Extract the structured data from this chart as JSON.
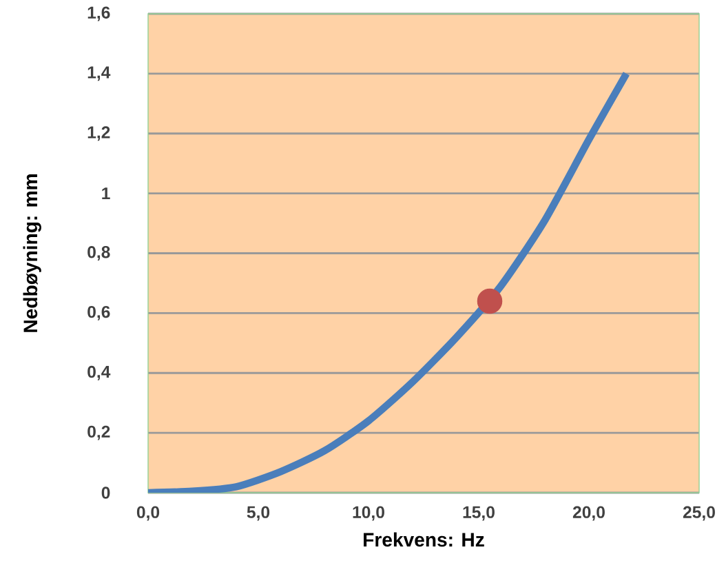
{
  "chart_data": {
    "type": "line",
    "xlabel": "Frekvens: Hz",
    "ylabel": "Nedbøyning: mm",
    "xlim": [
      0,
      25
    ],
    "ylim": [
      0,
      1.6
    ],
    "xticks": [
      {
        "value": 0,
        "label": "0,0"
      },
      {
        "value": 5,
        "label": "5,0"
      },
      {
        "value": 10,
        "label": "10,0"
      },
      {
        "value": 15,
        "label": "15,0"
      },
      {
        "value": 20,
        "label": "20,0"
      },
      {
        "value": 25,
        "label": "25,0"
      }
    ],
    "yticks": [
      0,
      {
        "value": 0.2,
        "label": "0,2"
      },
      {
        "value": 0.4,
        "label": "0,4"
      },
      {
        "value": 0.6,
        "label": "0,6"
      },
      {
        "value": 0.8,
        "label": "0,8"
      },
      1,
      {
        "value": 1.2,
        "label": "1,2"
      },
      {
        "value": 1.4,
        "label": "1,4"
      },
      {
        "value": 1.6,
        "label": "1,6"
      }
    ],
    "grid": "y",
    "marker": "none",
    "line_style": "solid",
    "series": [
      {
        "color": "#4a7ebb",
        "x": [
          0,
          2,
          4,
          6,
          8,
          10,
          12,
          14,
          16,
          18,
          20,
          21.7
        ],
        "values": [
          0,
          0.005,
          0.02,
          0.07,
          0.14,
          0.24,
          0.37,
          0.52,
          0.69,
          0.91,
          1.18,
          1.4
        ]
      },
      {
        "type": "scatter",
        "color": "#c0504d",
        "x": [
          15.5
        ],
        "values": [
          0.64
        ]
      }
    ]
  }
}
